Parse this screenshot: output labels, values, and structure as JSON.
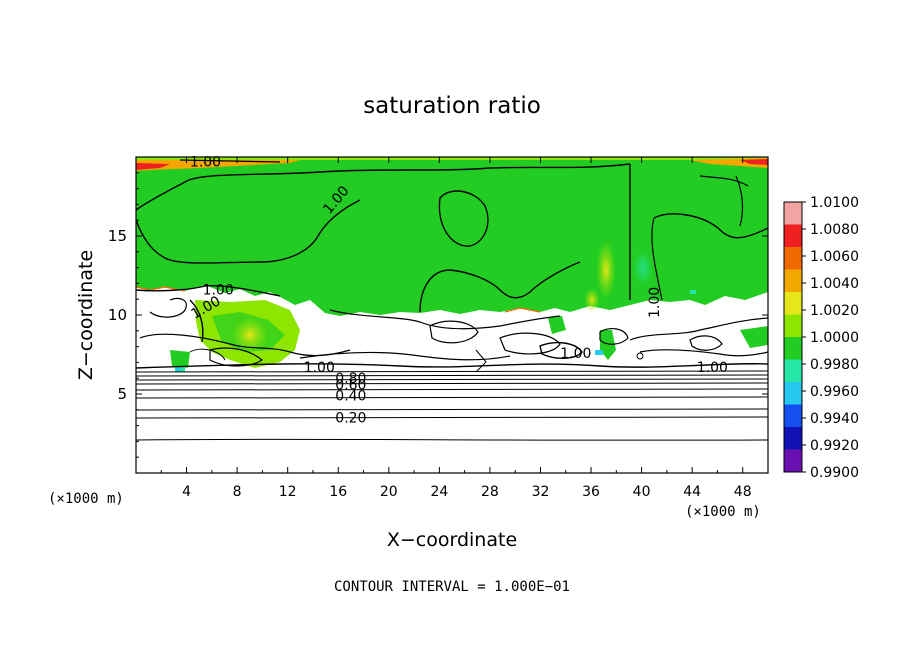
{
  "chart_data": {
    "type": "heatmap",
    "title": "saturation ratio",
    "xlabel": "X−coordinate",
    "ylabel": "Z−coordinate",
    "x_unit_label": "(×1000 m)",
    "y_unit_label": "(×1000 m)",
    "xlim": [
      0,
      50
    ],
    "ylim": [
      0,
      20
    ],
    "x_ticks": [
      4,
      8,
      12,
      16,
      20,
      24,
      28,
      32,
      36,
      40,
      44,
      48
    ],
    "y_ticks": [
      5,
      10,
      15
    ],
    "colorbar": {
      "levels": [
        "1.0100",
        "1.0080",
        "1.0060",
        "1.0040",
        "1.0020",
        "1.0000",
        "0.9980",
        "0.9960",
        "0.9940",
        "0.9920",
        "0.9900"
      ],
      "colors": [
        "#f4a3a3",
        "#ee2020",
        "#f06a00",
        "#f2a800",
        "#e6e61a",
        "#8ee600",
        "#22cc22",
        "#26e6a8",
        "#26c8f0",
        "#1450f0",
        "#1010b4",
        "#6a10b0"
      ]
    },
    "contour_labels": [
      {
        "text": "1.00",
        "x": 5.5,
        "z": 19.7
      },
      {
        "text": "1.00",
        "x": 15.8,
        "z": 17.3
      },
      {
        "text": "1.00",
        "x": 6.5,
        "z": 11.6
      },
      {
        "text": "1.00",
        "x": 5.5,
        "z": 10.5
      },
      {
        "text": "1.00",
        "x": 41.0,
        "z": 10.8
      },
      {
        "text": "1.00",
        "x": 14.5,
        "z": 6.7
      },
      {
        "text": "1.00",
        "x": 34.8,
        "z": 7.6
      },
      {
        "text": "1.00",
        "x": 45.6,
        "z": 6.7
      },
      {
        "text": "0.80",
        "x": 17.0,
        "z": 6.0
      },
      {
        "text": "0.60",
        "x": 17.0,
        "z": 5.6
      },
      {
        "text": "0.40",
        "x": 17.0,
        "z": 4.9
      },
      {
        "text": "0.20",
        "x": 17.0,
        "z": 3.5
      }
    ],
    "contour_levels_z": [
      1.9,
      3.1,
      3.7,
      4.5,
      5.0,
      5.5,
      5.8,
      6.1,
      6.4
    ],
    "footnote": "CONTOUR INTERVAL = 1.000E−01"
  }
}
